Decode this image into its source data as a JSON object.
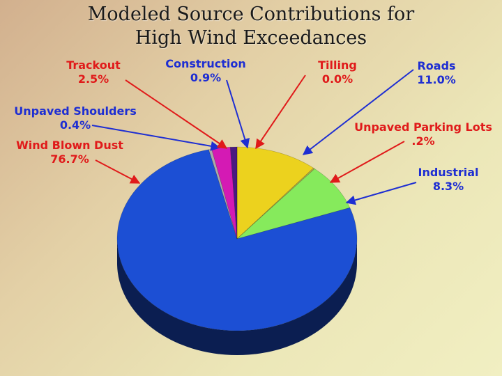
{
  "title_line1": "Modeled Source Contributions for",
  "title_line2": "High Wind Exceedances",
  "chart_data": {
    "type": "pie",
    "title": "Modeled Source Contributions for High Wind Exceedances",
    "slices": [
      {
        "name": "Roads",
        "label": "11.0%",
        "value": 11.0,
        "color": "#ecd21e",
        "label_color": "#1e2ed2",
        "arrow_color": "#1e2ed2"
      },
      {
        "name": "Unpaved Parking Lots",
        "label": ".2%",
        "value": 0.2,
        "color": "#b0b048",
        "label_color": "#e01a1a",
        "arrow_color": "#e01a1a"
      },
      {
        "name": "Industrial",
        "label": "8.3%",
        "value": 8.3,
        "color": "#86ea5c",
        "label_color": "#1e2ed2",
        "arrow_color": "#1e2ed2"
      },
      {
        "name": "Wind Blown Dust",
        "label": "76.7%",
        "value": 76.7,
        "color": "#1c4fd4",
        "label_color": "#e01a1a",
        "arrow_color": "#e01a1a"
      },
      {
        "name": "Unpaved Shoulders",
        "label": "0.4%",
        "value": 0.4,
        "color": "#aaaaaa",
        "label_color": "#1e2ed2",
        "arrow_color": "#1e2ed2"
      },
      {
        "name": "Trackout",
        "label": "2.5%",
        "value": 2.5,
        "color": "#d41ab4",
        "label_color": "#e01a1a",
        "arrow_color": "#e01a1a"
      },
      {
        "name": "Construction",
        "label": "0.9%",
        "value": 0.9,
        "color": "#4a1a80",
        "label_color": "#1e2ed2",
        "arrow_color": "#1e2ed2"
      },
      {
        "name": "Tilling",
        "label": "0.0%",
        "value": 0.0,
        "color": "#d40000",
        "label_color": "#e01a1a",
        "arrow_color": "#e01a1a"
      }
    ]
  }
}
